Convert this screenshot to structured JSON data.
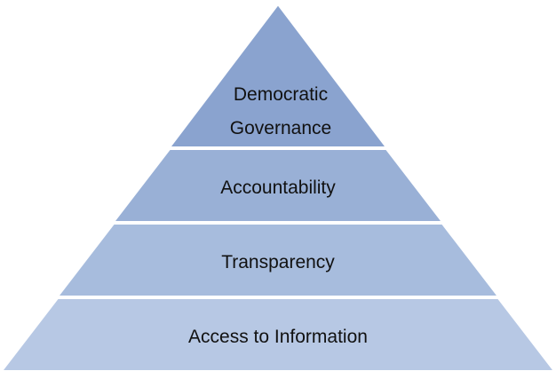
{
  "pyramid": {
    "tiers": [
      {
        "lines": [
          "Democratic",
          "Governance"
        ],
        "color": "#8aa3cf"
      },
      {
        "lines": [
          "Accountability"
        ],
        "color": "#99b0d6"
      },
      {
        "lines": [
          "Transparency"
        ],
        "color": "#a7bcdd"
      },
      {
        "lines": [
          "Access to Information"
        ],
        "color": "#b7c8e4"
      }
    ]
  }
}
